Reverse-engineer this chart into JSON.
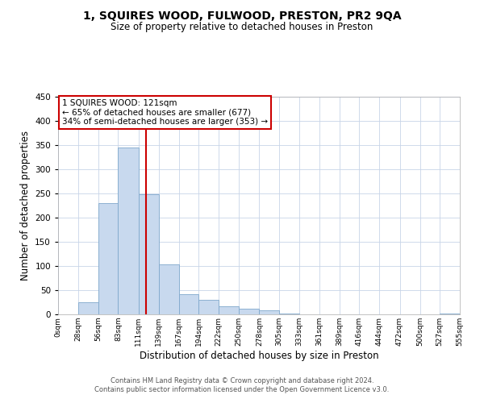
{
  "title": "1, SQUIRES WOOD, FULWOOD, PRESTON, PR2 9QA",
  "subtitle": "Size of property relative to detached houses in Preston",
  "xlabel": "Distribution of detached houses by size in Preston",
  "ylabel": "Number of detached properties",
  "bar_color": "#c8d9ee",
  "bar_edge_color": "#7fa8cc",
  "background_color": "#ffffff",
  "grid_color": "#c8d4e8",
  "property_value": 121,
  "vline_color": "#cc0000",
  "annotation_line1": "1 SQUIRES WOOD: 121sqm",
  "annotation_line2": "← 65% of detached houses are smaller (677)",
  "annotation_line3": "34% of semi-detached houses are larger (353) →",
  "annotation_box_color": "#ffffff",
  "annotation_box_edge": "#cc0000",
  "ylim": [
    0,
    450
  ],
  "yticks": [
    0,
    50,
    100,
    150,
    200,
    250,
    300,
    350,
    400,
    450
  ],
  "bin_edges": [
    0,
    28,
    56,
    83,
    111,
    139,
    167,
    194,
    222,
    250,
    278,
    305,
    333,
    361,
    389,
    416,
    444,
    472,
    500,
    527,
    555
  ],
  "bin_heights": [
    0,
    25,
    230,
    345,
    248,
    103,
    41,
    30,
    16,
    11,
    9,
    1,
    0,
    0,
    0,
    0,
    0,
    0,
    0,
    2
  ],
  "tick_labels": [
    "0sqm",
    "28sqm",
    "56sqm",
    "83sqm",
    "111sqm",
    "139sqm",
    "167sqm",
    "194sqm",
    "222sqm",
    "250sqm",
    "278sqm",
    "305sqm",
    "333sqm",
    "361sqm",
    "389sqm",
    "416sqm",
    "444sqm",
    "472sqm",
    "500sqm",
    "527sqm",
    "555sqm"
  ],
  "footer_line1": "Contains HM Land Registry data © Crown copyright and database right 2024.",
  "footer_line2": "Contains public sector information licensed under the Open Government Licence v3.0."
}
